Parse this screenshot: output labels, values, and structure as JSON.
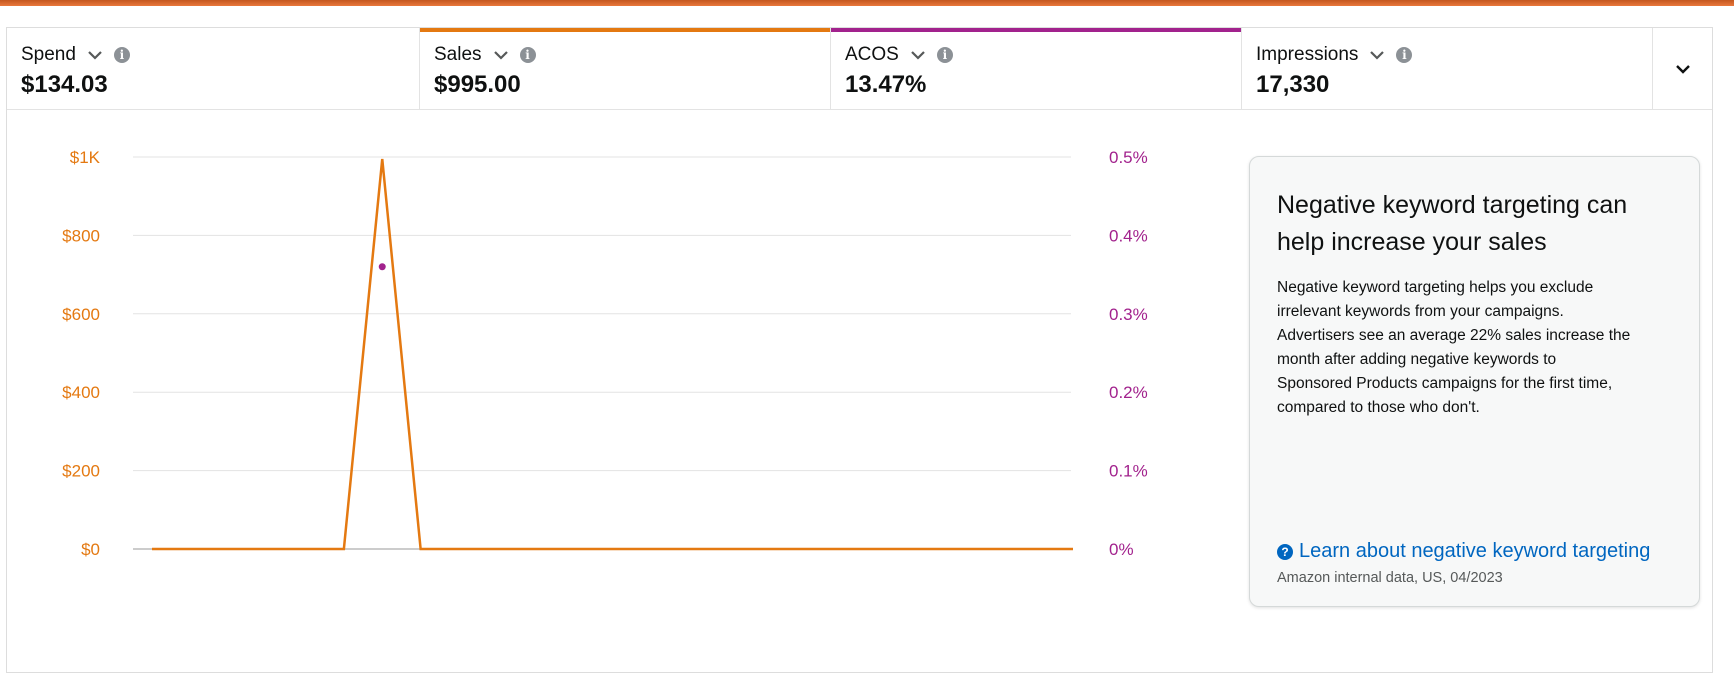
{
  "metrics": [
    {
      "label": "Spend",
      "value": "$134.03",
      "accent": null
    },
    {
      "label": "Sales",
      "value": "$995.00",
      "accent": "#e47911"
    },
    {
      "label": "ACOS",
      "value": "13.47%",
      "accent": "#a2228d"
    },
    {
      "label": "Impressions",
      "value": "17,330",
      "accent": null
    }
  ],
  "colors": {
    "sales": "#e47911",
    "acos": "#a2228d",
    "grid": "#e3e3e3",
    "link": "#0066c0"
  },
  "chart_data": {
    "type": "line",
    "y_left": {
      "ylim": [
        0,
        1000
      ],
      "ticks": [
        "$0",
        "$200",
        "$400",
        "$600",
        "$800",
        "$1K"
      ],
      "tick_values": [
        0,
        200,
        400,
        600,
        800,
        1000
      ]
    },
    "y_right": {
      "ylim": [
        0,
        0.5
      ],
      "ticks": [
        "0%",
        "0.1%",
        "0.2%",
        "0.3%",
        "0.4%",
        "0.5%"
      ],
      "tick_values": [
        0,
        0.1,
        0.2,
        0.3,
        0.4,
        0.5
      ]
    },
    "grid": true,
    "series": [
      {
        "name": "Sales",
        "axis": "left",
        "color": "#e47911",
        "values": [
          0,
          0,
          0,
          0,
          0,
          0,
          995,
          0,
          0,
          0,
          0,
          0,
          0,
          0,
          0,
          0,
          0,
          0,
          0,
          0,
          0,
          0,
          0,
          0,
          0
        ]
      },
      {
        "name": "ACOS",
        "axis": "right",
        "color": "#a2228d",
        "points": [
          {
            "index": 6,
            "value": 0.36
          }
        ]
      }
    ]
  },
  "card": {
    "title": "Negative keyword targeting can help increase your sales",
    "body": "Negative keyword targeting helps you exclude irrelevant keywords from your campaigns. Advertisers see an average 22% sales increase the month after adding negative keywords to Sponsored Products campaigns for the first time, compared to those who don't.",
    "link_icon": "question-circle-icon",
    "link": "Learn about negative keyword targeting",
    "source": "Amazon internal data, US, 04/2023"
  },
  "icons": {
    "dropdown": "chevron-down-icon",
    "info": "info-icon",
    "collapse": "chevron-down-icon"
  }
}
